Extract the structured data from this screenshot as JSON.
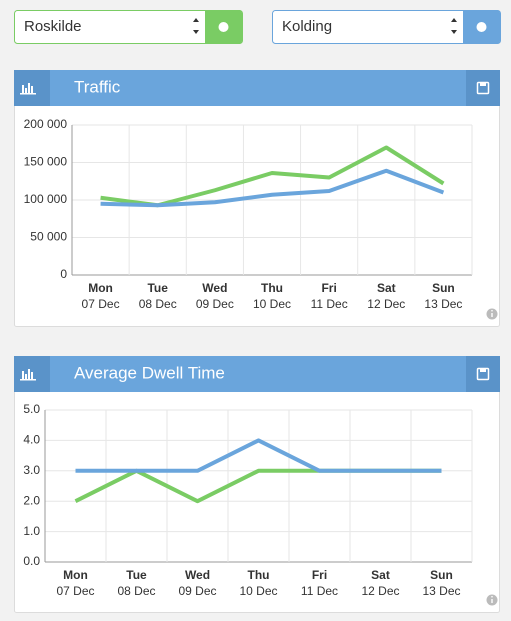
{
  "controls": {
    "left": "Roskilde",
    "right": "Kolding"
  },
  "chart_data": [
    {
      "type": "line",
      "title": "Traffic",
      "categories": [
        "Mon",
        "Tue",
        "Wed",
        "Thu",
        "Fri",
        "Sat",
        "Sun"
      ],
      "dates": [
        "07 Dec",
        "08 Dec",
        "09 Dec",
        "10 Dec",
        "11 Dec",
        "12 Dec",
        "13 Dec"
      ],
      "series": [
        {
          "color": "#7acc64",
          "values": [
            103000,
            93000,
            113000,
            136000,
            130000,
            170000,
            122000
          ]
        },
        {
          "color": "#6aa5dc",
          "values": [
            95000,
            93000,
            97000,
            107000,
            112000,
            139000,
            110000
          ]
        }
      ],
      "ylim": [
        0,
        200000
      ],
      "yticks": [
        0,
        {
          "value": 50000,
          "label": "50 000"
        },
        {
          "value": 100000,
          "label": "100 000"
        },
        {
          "value": 150000,
          "label": "150 000"
        },
        {
          "value": 200000,
          "label": "200 000"
        }
      ],
      "grid": true
    },
    {
      "type": "line",
      "title": "Average Dwell Time",
      "categories": [
        "Mon",
        "Tue",
        "Wed",
        "Thu",
        "Fri",
        "Sat",
        "Sun"
      ],
      "dates": [
        "07 Dec",
        "08 Dec",
        "09 Dec",
        "10 Dec",
        "11 Dec",
        "12 Dec",
        "13 Dec"
      ],
      "series": [
        {
          "color": "#7acc64",
          "values": [
            2,
            3,
            2,
            3,
            3,
            3,
            3
          ]
        },
        {
          "color": "#6aa5dc",
          "values": [
            3,
            3,
            3,
            4,
            3,
            3,
            3
          ]
        }
      ],
      "ylim": [
        0,
        5
      ],
      "yticks": [
        {
          "value": 0,
          "label": "0.0"
        },
        {
          "value": 1,
          "label": "1.0"
        },
        {
          "value": 2,
          "label": "2.0"
        },
        {
          "value": 3,
          "label": "3.0"
        },
        {
          "value": 4,
          "label": "4.0"
        },
        {
          "value": 5,
          "label": "5.0"
        }
      ],
      "grid": true
    }
  ]
}
